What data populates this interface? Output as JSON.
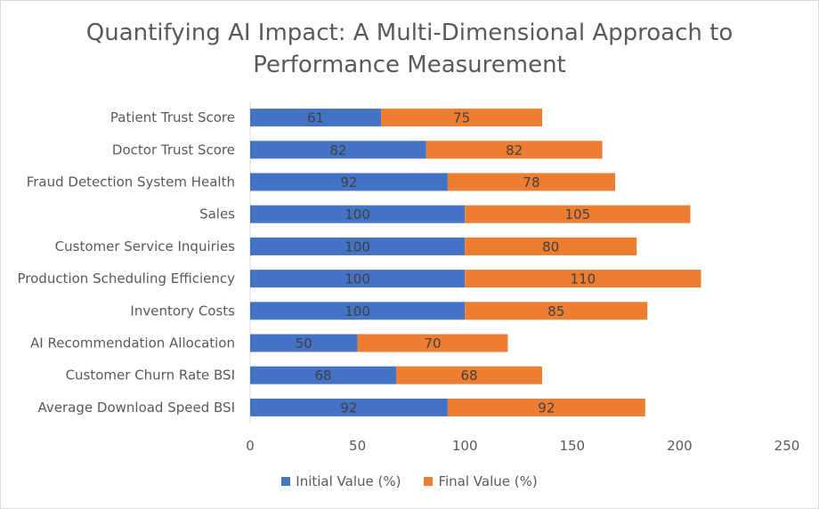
{
  "chart_data": {
    "type": "bar",
    "orientation": "horizontal",
    "stacked": true,
    "title": "Quantifying AI Impact: A Multi-Dimensional Approach to Performance Measurement",
    "title_lines": [
      "Quantifying AI Impact: A Multi-Dimensional Approach to",
      "Performance Measurement"
    ],
    "xlabel": "",
    "ylabel": "",
    "categories": [
      "Patient Trust Score",
      "Doctor Trust Score",
      "Fraud Detection System Health",
      "Sales",
      "Customer Service Inquiries",
      "Production Scheduling Efficiency",
      "Inventory Costs",
      "AI Recommendation Allocation",
      "Customer Churn Rate BSI",
      "Average Download Speed BSI"
    ],
    "series": [
      {
        "name": "Initial Value (%)",
        "color": "#4472c4",
        "values": [
          61,
          82,
          92,
          100,
          100,
          100,
          100,
          50,
          68,
          92
        ]
      },
      {
        "name": "Final Value (%)",
        "color": "#ed7d31",
        "values": [
          75,
          82,
          78,
          105,
          80,
          110,
          85,
          70,
          68,
          92
        ]
      }
    ],
    "xlim": [
      0,
      250
    ],
    "xticks": [
      0,
      50,
      100,
      150,
      200,
      250
    ],
    "grid": false,
    "legend_position": "bottom"
  }
}
